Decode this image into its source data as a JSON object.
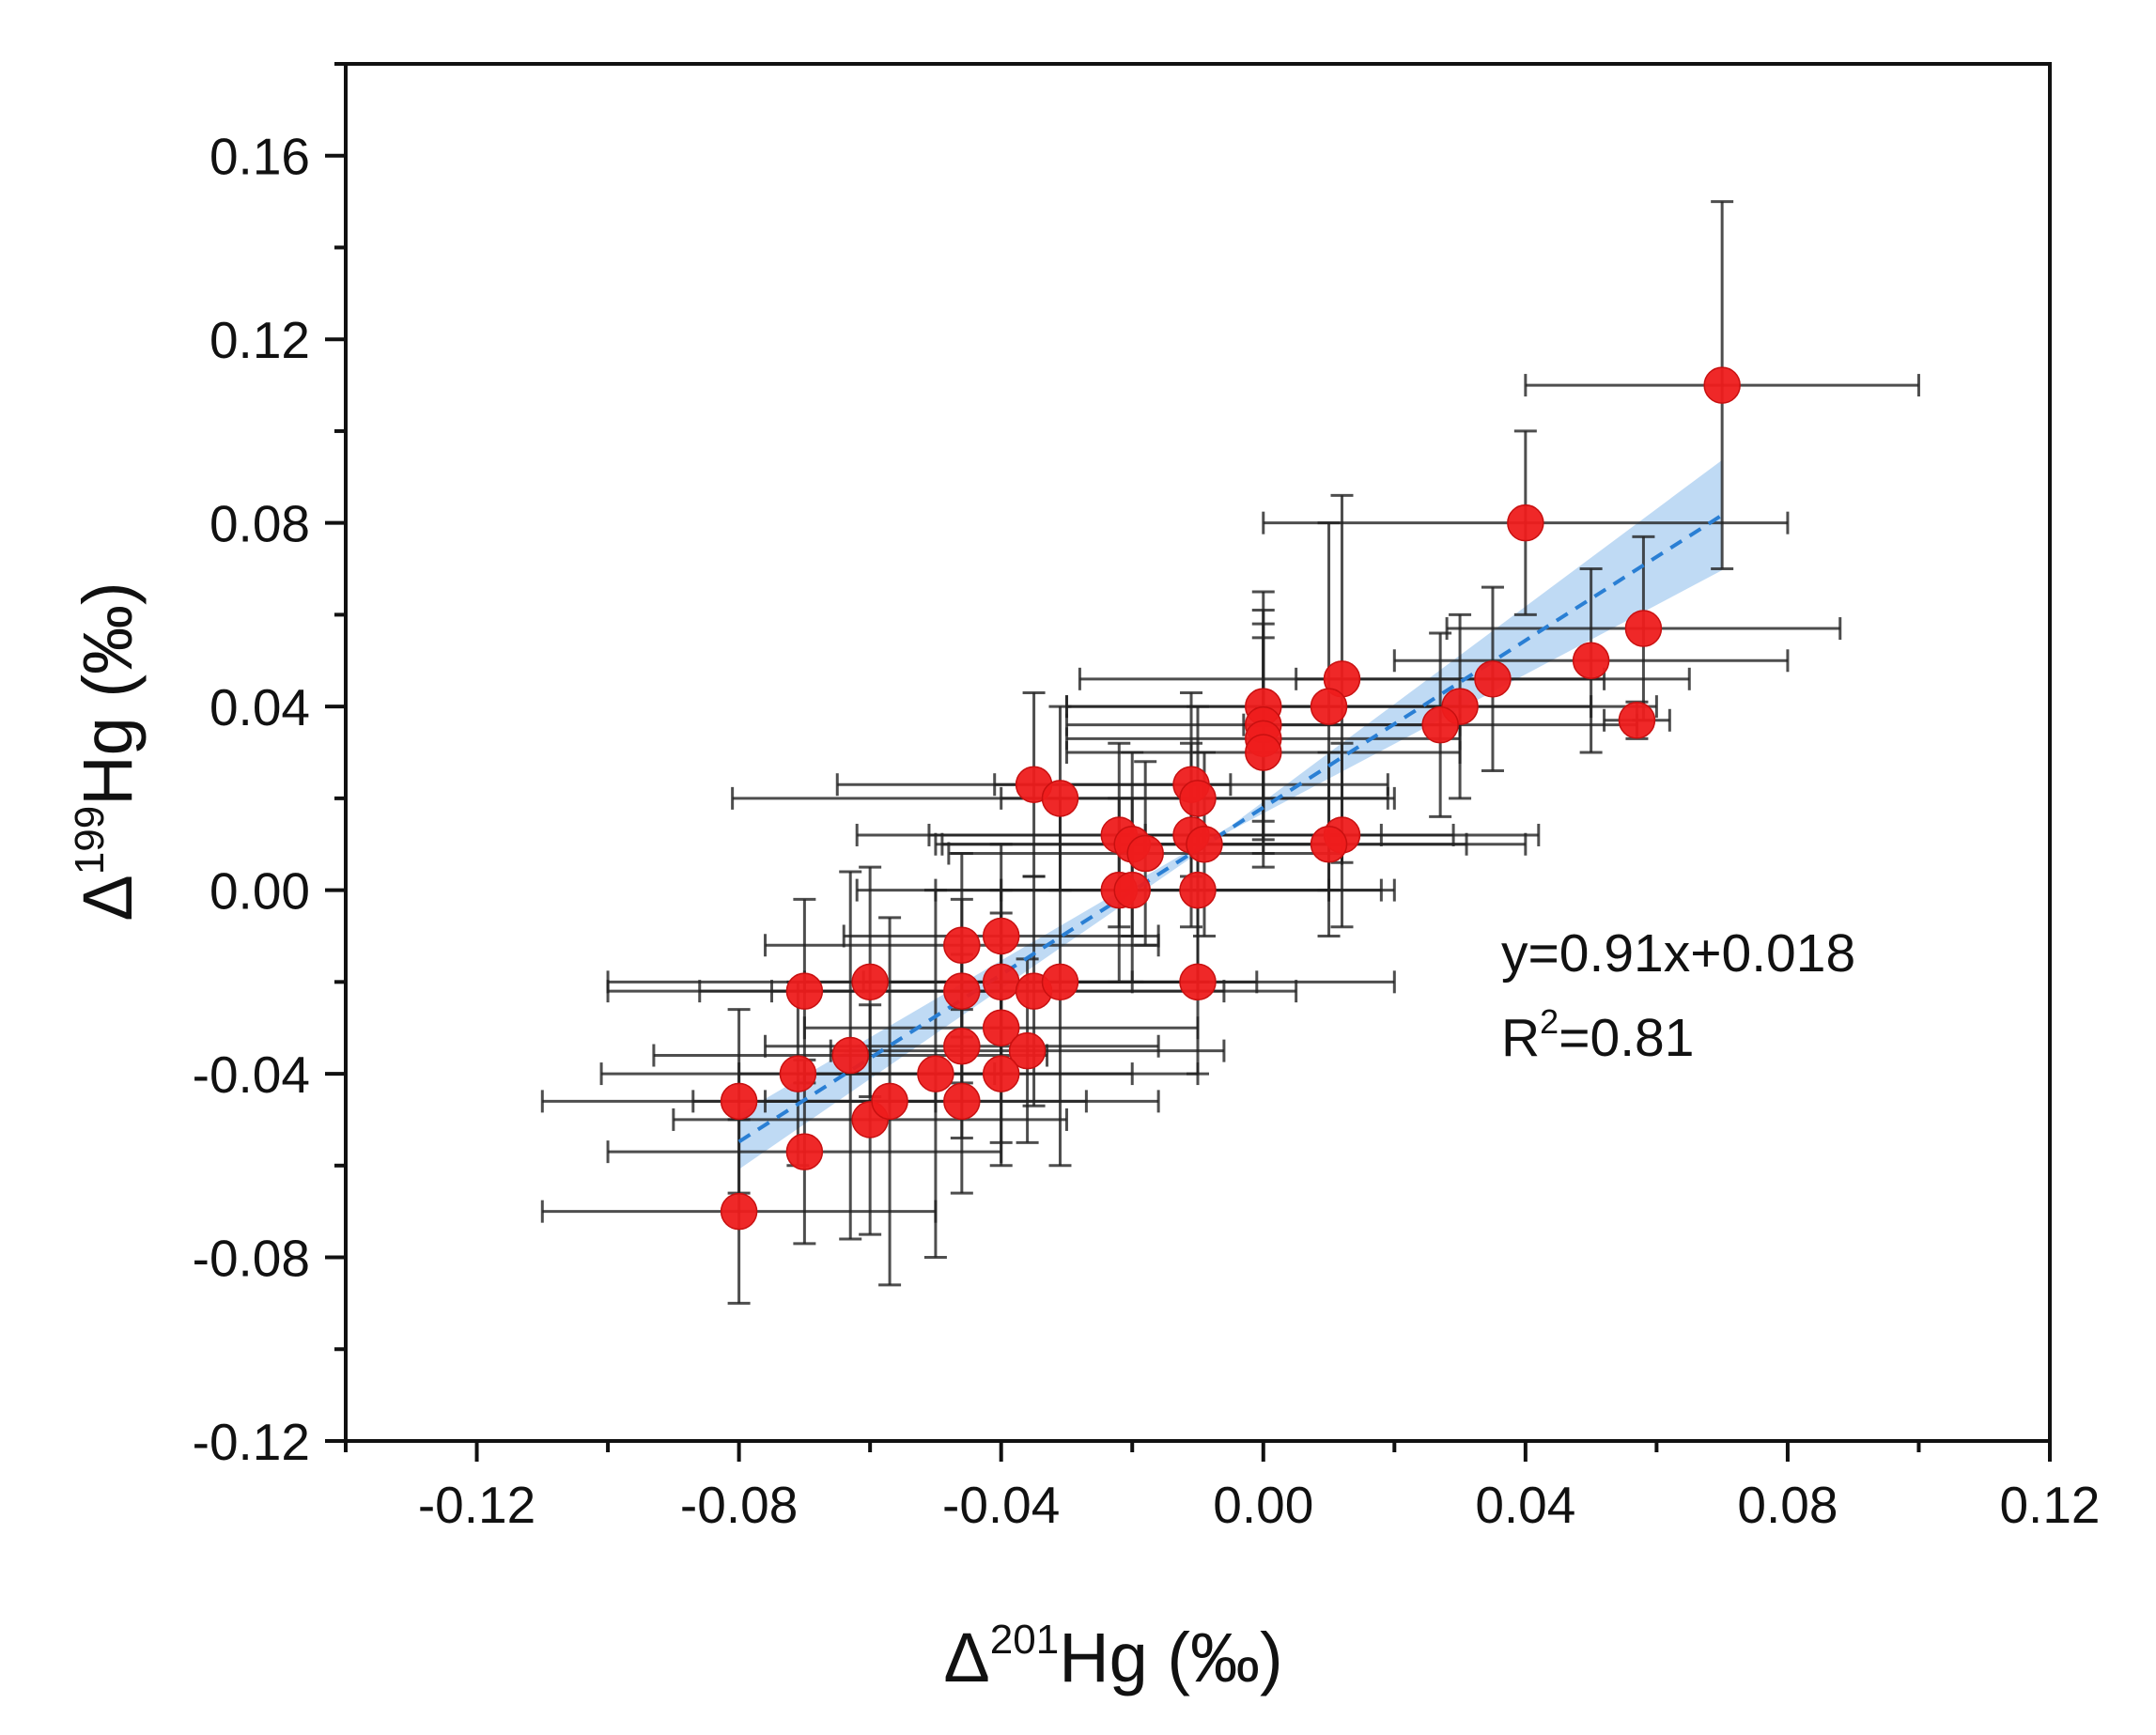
{
  "chart_data": {
    "type": "scatter",
    "title": "",
    "xlabel": {
      "prefix": "Δ",
      "sup": "201",
      "suffix": "Hg (‰)"
    },
    "ylabel": {
      "prefix": "Δ",
      "sup": "199",
      "suffix": "Hg (‰)"
    },
    "xlim": [
      -0.14,
      0.12
    ],
    "ylim": [
      -0.12,
      0.18
    ],
    "x_ticks": [
      -0.12,
      -0.08,
      -0.04,
      0.0,
      0.04,
      0.08,
      0.12
    ],
    "x_tick_labels": [
      "-0.12",
      "-0.08",
      "-0.04",
      "0.00",
      "0.04",
      "0.08",
      "0.12"
    ],
    "y_ticks": [
      -0.12,
      -0.08,
      -0.04,
      0.0,
      0.04,
      0.08,
      0.12,
      0.16
    ],
    "y_tick_labels": [
      "-0.12",
      "-0.08",
      "-0.04",
      "0.00",
      "0.04",
      "0.08",
      "0.12",
      "0.16"
    ],
    "x_minor_step": 0.02,
    "y_minor_step": 0.02,
    "grid": false,
    "colors": {
      "point": "#ee1c1c",
      "point_edge": "#c81010",
      "errorbar": "#222222",
      "fit": "#2a7fd4",
      "band": "#a9cdf0"
    },
    "points": [
      {
        "x": 0.07,
        "y": 0.11,
        "xerr": 0.03,
        "yerr": 0.04
      },
      {
        "x": 0.04,
        "y": 0.08,
        "xerr": 0.04,
        "yerr": 0.02
      },
      {
        "x": 0.058,
        "y": 0.057,
        "xerr": 0.03,
        "yerr": 0.02
      },
      {
        "x": 0.05,
        "y": 0.05,
        "xerr": 0.03,
        "yerr": 0.02
      },
      {
        "x": 0.035,
        "y": 0.046,
        "xerr": 0.03,
        "yerr": 0.02
      },
      {
        "x": 0.03,
        "y": 0.04,
        "xerr": 0.03,
        "yerr": 0.02
      },
      {
        "x": 0.027,
        "y": 0.036,
        "xerr": 0.03,
        "yerr": 0.02
      },
      {
        "x": 0.057,
        "y": 0.037,
        "xerr": 0.005,
        "yerr": 0.004
      },
      {
        "x": 0.012,
        "y": 0.046,
        "xerr": 0.04,
        "yerr": 0.04
      },
      {
        "x": 0.01,
        "y": 0.04,
        "xerr": 0.04,
        "yerr": 0.04
      },
      {
        "x": 0.012,
        "y": 0.012,
        "xerr": 0.03,
        "yerr": 0.02
      },
      {
        "x": 0.01,
        "y": 0.01,
        "xerr": 0.03,
        "yerr": 0.02
      },
      {
        "x": 0.0,
        "y": 0.04,
        "xerr": 0.03,
        "yerr": 0.025
      },
      {
        "x": 0.0,
        "y": 0.036,
        "xerr": 0.03,
        "yerr": 0.025
      },
      {
        "x": 0.0,
        "y": 0.033,
        "xerr": 0.03,
        "yerr": 0.025
      },
      {
        "x": 0.0,
        "y": 0.03,
        "xerr": 0.03,
        "yerr": 0.025
      },
      {
        "x": -0.011,
        "y": 0.023,
        "xerr": 0.03,
        "yerr": 0.02
      },
      {
        "x": -0.01,
        "y": 0.02,
        "xerr": 0.03,
        "yerr": 0.02
      },
      {
        "x": -0.011,
        "y": 0.012,
        "xerr": 0.04,
        "yerr": 0.02
      },
      {
        "x": -0.009,
        "y": 0.01,
        "xerr": 0.04,
        "yerr": 0.02
      },
      {
        "x": -0.01,
        "y": 0.0,
        "xerr": 0.03,
        "yerr": 0.02
      },
      {
        "x": -0.01,
        "y": -0.02,
        "xerr": 0.03,
        "yerr": 0.02
      },
      {
        "x": -0.022,
        "y": 0.012,
        "xerr": 0.04,
        "yerr": 0.02
      },
      {
        "x": -0.02,
        "y": 0.01,
        "xerr": 0.03,
        "yerr": 0.02
      },
      {
        "x": -0.018,
        "y": 0.008,
        "xerr": 0.03,
        "yerr": 0.02
      },
      {
        "x": -0.022,
        "y": 0.0,
        "xerr": 0.04,
        "yerr": 0.02
      },
      {
        "x": -0.02,
        "y": 0.0,
        "xerr": 0.03,
        "yerr": 0.02
      },
      {
        "x": -0.035,
        "y": 0.023,
        "xerr": 0.03,
        "yerr": 0.02
      },
      {
        "x": -0.031,
        "y": 0.02,
        "xerr": 0.05,
        "yerr": 0.02
      },
      {
        "x": -0.046,
        "y": -0.012,
        "xerr": 0.03,
        "yerr": 0.02
      },
      {
        "x": -0.04,
        "y": -0.01,
        "xerr": 0.024,
        "yerr": 0.02
      },
      {
        "x": -0.046,
        "y": -0.022,
        "xerr": 0.04,
        "yerr": 0.02
      },
      {
        "x": -0.04,
        "y": -0.02,
        "xerr": 0.03,
        "yerr": 0.02
      },
      {
        "x": -0.035,
        "y": -0.022,
        "xerr": 0.04,
        "yerr": 0.025
      },
      {
        "x": -0.031,
        "y": -0.02,
        "xerr": 0.03,
        "yerr": 0.04
      },
      {
        "x": -0.04,
        "y": -0.03,
        "xerr": 0.03,
        "yerr": 0.025
      },
      {
        "x": -0.046,
        "y": -0.034,
        "xerr": 0.03,
        "yerr": 0.02
      },
      {
        "x": -0.036,
        "y": -0.035,
        "xerr": 0.03,
        "yerr": 0.02
      },
      {
        "x": -0.04,
        "y": -0.04,
        "xerr": 0.03,
        "yerr": 0.02
      },
      {
        "x": -0.046,
        "y": -0.046,
        "xerr": 0.03,
        "yerr": 0.02
      },
      {
        "x": -0.05,
        "y": -0.04,
        "xerr": 0.03,
        "yerr": 0.04
      },
      {
        "x": -0.06,
        "y": -0.02,
        "xerr": 0.04,
        "yerr": 0.025
      },
      {
        "x": -0.063,
        "y": -0.036,
        "xerr": 0.03,
        "yerr": 0.04
      },
      {
        "x": -0.07,
        "y": -0.022,
        "xerr": 0.03,
        "yerr": 0.02
      },
      {
        "x": -0.071,
        "y": -0.04,
        "xerr": 0.03,
        "yerr": 0.02
      },
      {
        "x": -0.06,
        "y": -0.05,
        "xerr": 0.03,
        "yerr": 0.025
      },
      {
        "x": -0.057,
        "y": -0.046,
        "xerr": 0.03,
        "yerr": 0.04
      },
      {
        "x": -0.07,
        "y": -0.057,
        "xerr": 0.03,
        "yerr": 0.02
      },
      {
        "x": -0.08,
        "y": -0.046,
        "xerr": 0.03,
        "yerr": 0.02
      },
      {
        "x": -0.08,
        "y": -0.07,
        "xerr": 0.03,
        "yerr": 0.02
      }
    ],
    "fit": {
      "slope": 0.91,
      "intercept": 0.018,
      "x_range": [
        -0.08,
        0.07
      ],
      "band_halfwidth_at": [
        0.006,
        0.0005,
        0.012
      ]
    },
    "annotations": {
      "equation": "y=0.91x+0.018",
      "r2_prefix": "R",
      "r2_sup": "2",
      "r2_suffix": "=0.81"
    }
  }
}
